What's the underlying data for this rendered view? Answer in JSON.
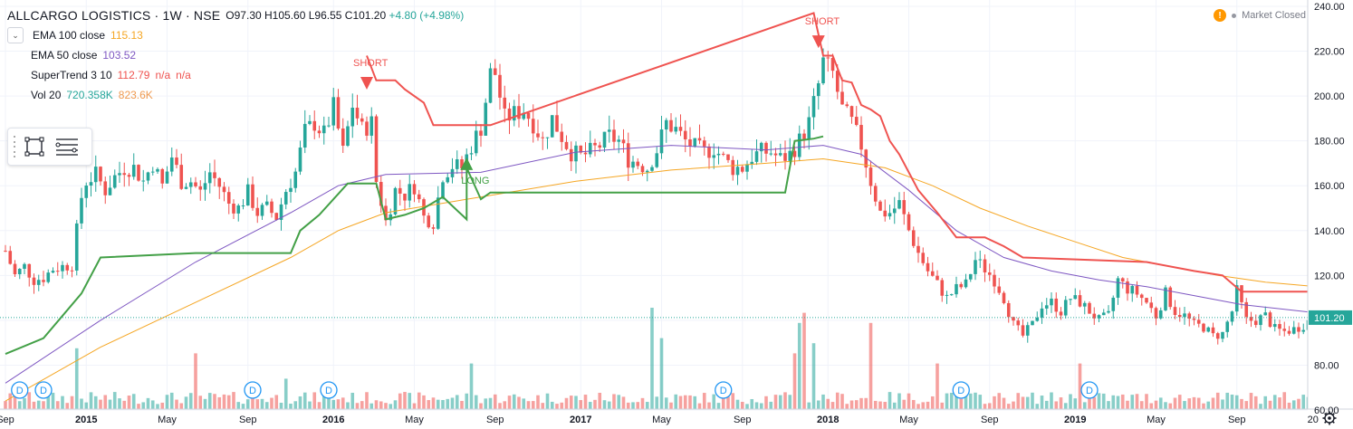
{
  "header": {
    "symbol": "ALLCARGO LOGISTICS · 1W · NSE",
    "open": "O97.30",
    "high": "H105.60",
    "low": "L96.55",
    "close": "C101.20",
    "change": "+4.80 (+4.98%)"
  },
  "indicators": {
    "ema100": {
      "label": "EMA 100 close",
      "value": "115.13",
      "color": "#f5a623"
    },
    "ema50": {
      "label": "EMA 50 close",
      "value": "103.52",
      "color": "#7e57c2"
    },
    "supertrend": {
      "label": "SuperTrend 3 10",
      "value": "112.79",
      "na1": "n/a",
      "na2": "n/a",
      "color": "#ef5350"
    },
    "vol": {
      "label": "Vol 20",
      "value1": "720.358K",
      "value2": "823.6K",
      "color1": "#26a69a",
      "color2": "#ef9a50"
    }
  },
  "market_status": {
    "text": "Market Closed",
    "icon": "warning-icon"
  },
  "toolbar": {
    "icons": [
      "rectangle-tool-icon",
      "lines-tool-icon"
    ]
  },
  "chart_data": {
    "type": "candlestick",
    "price_axis": {
      "ticks": [
        60,
        80,
        100,
        120,
        140,
        160,
        180,
        200,
        220,
        240
      ],
      "range": [
        60,
        240
      ]
    },
    "time_axis": {
      "labels": [
        "Sep",
        "2015",
        "May",
        "Sep",
        "2016",
        "May",
        "Sep",
        "2017",
        "May",
        "Sep",
        "2018",
        "May",
        "Sep",
        "2019",
        "May",
        "Sep",
        "20"
      ],
      "weeks": [
        0,
        17,
        34,
        51,
        69,
        86,
        103,
        121,
        138,
        155,
        173,
        190,
        207,
        225,
        242,
        259,
        275
      ]
    },
    "last_price": {
      "value": 101.2,
      "label": "101.20"
    },
    "close_series": [
      [
        0,
        131
      ],
      [
        2,
        120
      ],
      [
        4,
        124
      ],
      [
        6,
        118
      ],
      [
        8,
        119
      ],
      [
        10,
        123
      ],
      [
        12,
        124
      ],
      [
        14,
        125
      ],
      [
        16,
        155
      ],
      [
        17,
        162
      ],
      [
        19,
        165
      ],
      [
        21,
        158
      ],
      [
        23,
        164
      ],
      [
        25,
        168
      ],
      [
        27,
        168
      ],
      [
        29,
        162
      ],
      [
        31,
        170
      ],
      [
        33,
        160
      ],
      [
        35,
        173
      ],
      [
        37,
        162
      ],
      [
        39,
        162
      ],
      [
        41,
        157
      ],
      [
        43,
        166
      ],
      [
        45,
        160
      ],
      [
        47,
        152
      ],
      [
        49,
        150
      ],
      [
        51,
        157
      ],
      [
        53,
        148
      ],
      [
        55,
        150
      ],
      [
        57,
        146
      ],
      [
        59,
        158
      ],
      [
        61,
        166
      ],
      [
        63,
        184
      ],
      [
        65,
        188
      ],
      [
        67,
        183
      ],
      [
        69,
        195
      ],
      [
        71,
        175
      ],
      [
        73,
        196
      ],
      [
        75,
        185
      ],
      [
        77,
        188
      ],
      [
        78,
        162
      ],
      [
        80,
        144
      ],
      [
        82,
        158
      ],
      [
        84,
        156
      ],
      [
        86,
        160
      ],
      [
        88,
        146
      ],
      [
        90,
        144
      ],
      [
        92,
        165
      ],
      [
        94,
        169
      ],
      [
        96,
        168
      ],
      [
        98,
        178
      ],
      [
        100,
        186
      ],
      [
        102,
        210
      ],
      [
        103,
        210
      ],
      [
        105,
        190
      ],
      [
        107,
        192
      ],
      [
        109,
        194
      ],
      [
        111,
        188
      ],
      [
        113,
        180
      ],
      [
        115,
        190
      ],
      [
        117,
        182
      ],
      [
        119,
        175
      ],
      [
        121,
        173
      ],
      [
        123,
        175
      ],
      [
        125,
        178
      ],
      [
        127,
        182
      ],
      [
        129,
        180
      ],
      [
        131,
        172
      ],
      [
        133,
        170
      ],
      [
        135,
        168
      ],
      [
        137,
        176
      ],
      [
        139,
        188
      ],
      [
        141,
        185
      ],
      [
        143,
        180
      ],
      [
        145,
        177
      ],
      [
        147,
        175
      ],
      [
        149,
        177
      ],
      [
        151,
        172
      ],
      [
        153,
        168
      ],
      [
        155,
        168
      ],
      [
        157,
        173
      ],
      [
        159,
        175
      ],
      [
        161,
        175
      ],
      [
        163,
        172
      ],
      [
        165,
        174
      ],
      [
        167,
        180
      ],
      [
        169,
        188
      ],
      [
        171,
        205
      ],
      [
        172,
        215
      ],
      [
        174,
        210
      ],
      [
        176,
        194
      ],
      [
        178,
        188
      ],
      [
        180,
        178
      ],
      [
        182,
        162
      ],
      [
        184,
        148
      ],
      [
        186,
        148
      ],
      [
        188,
        152
      ],
      [
        190,
        140
      ],
      [
        192,
        130
      ],
      [
        194,
        122
      ],
      [
        196,
        116
      ],
      [
        198,
        110
      ],
      [
        200,
        114
      ],
      [
        202,
        116
      ],
      [
        204,
        127
      ],
      [
        206,
        123
      ],
      [
        208,
        118
      ],
      [
        210,
        110
      ],
      [
        212,
        98
      ],
      [
        214,
        93
      ],
      [
        216,
        98
      ],
      [
        218,
        107
      ],
      [
        220,
        108
      ],
      [
        222,
        104
      ],
      [
        224,
        110
      ],
      [
        226,
        108
      ],
      [
        228,
        104
      ],
      [
        230,
        100
      ],
      [
        232,
        102
      ],
      [
        234,
        118
      ],
      [
        236,
        114
      ],
      [
        238,
        112
      ],
      [
        240,
        108
      ],
      [
        242,
        102
      ],
      [
        244,
        112
      ],
      [
        246,
        104
      ],
      [
        248,
        102
      ],
      [
        250,
        98
      ],
      [
        252,
        97
      ],
      [
        254,
        93
      ],
      [
        256,
        94
      ],
      [
        258,
        104
      ],
      [
        259,
        113
      ],
      [
        261,
        100
      ],
      [
        263,
        100
      ],
      [
        265,
        102
      ],
      [
        267,
        96
      ],
      [
        269,
        95
      ],
      [
        271,
        96
      ],
      [
        273,
        98
      ],
      [
        275,
        101.2
      ]
    ],
    "ema50": [
      [
        0,
        72
      ],
      [
        20,
        100
      ],
      [
        40,
        126
      ],
      [
        60,
        148
      ],
      [
        70,
        160
      ],
      [
        80,
        165
      ],
      [
        100,
        166
      ],
      [
        120,
        175
      ],
      [
        140,
        178
      ],
      [
        160,
        176
      ],
      [
        172,
        178
      ],
      [
        180,
        174
      ],
      [
        190,
        158
      ],
      [
        200,
        140
      ],
      [
        210,
        128
      ],
      [
        220,
        122
      ],
      [
        230,
        118
      ],
      [
        240,
        115
      ],
      [
        250,
        111
      ],
      [
        260,
        107
      ],
      [
        275,
        103.52
      ]
    ],
    "ema100": [
      [
        0,
        64
      ],
      [
        20,
        88
      ],
      [
        40,
        108
      ],
      [
        60,
        128
      ],
      [
        70,
        140
      ],
      [
        80,
        148
      ],
      [
        100,
        155
      ],
      [
        120,
        162
      ],
      [
        140,
        167
      ],
      [
        160,
        170
      ],
      [
        172,
        172
      ],
      [
        185,
        168
      ],
      [
        195,
        160
      ],
      [
        205,
        150
      ],
      [
        215,
        142
      ],
      [
        225,
        135
      ],
      [
        235,
        128
      ],
      [
        245,
        124
      ],
      [
        255,
        120
      ],
      [
        265,
        117
      ],
      [
        275,
        115.13
      ]
    ],
    "supertrend_up": [
      [
        0,
        85
      ],
      [
        8,
        92
      ],
      [
        16,
        112
      ],
      [
        20,
        128
      ],
      [
        40,
        130
      ],
      [
        60,
        130
      ],
      [
        62,
        140
      ],
      [
        66,
        147
      ],
      [
        72,
        161
      ],
      [
        78,
        161
      ],
      [
        80,
        145
      ],
      [
        84,
        147
      ],
      [
        88,
        150
      ],
      [
        92,
        155
      ],
      [
        97,
        145
      ],
      [
        97,
        168
      ],
      [
        100,
        154
      ],
      [
        102,
        157
      ],
      [
        130,
        157
      ],
      [
        160,
        157
      ],
      [
        164,
        157
      ],
      [
        166,
        180
      ],
      [
        170,
        181
      ],
      [
        172,
        182
      ]
    ],
    "supertrend_down": [
      [
        76,
        218
      ],
      [
        78,
        207
      ],
      [
        82,
        207
      ],
      [
        84,
        203
      ],
      [
        88,
        197
      ],
      [
        90,
        187
      ],
      [
        102,
        187
      ],
      [
        170,
        237
      ],
      [
        172,
        218
      ],
      [
        174,
        218
      ],
      [
        176,
        207
      ],
      [
        178,
        206
      ],
      [
        180,
        196
      ],
      [
        182,
        194
      ],
      [
        184,
        191
      ],
      [
        186,
        180
      ],
      [
        188,
        174
      ],
      [
        192,
        158
      ],
      [
        196,
        148
      ],
      [
        200,
        137
      ],
      [
        206,
        137
      ],
      [
        210,
        133
      ],
      [
        214,
        128
      ],
      [
        240,
        126
      ],
      [
        250,
        122
      ],
      [
        256,
        120
      ],
      [
        260,
        112.79
      ],
      [
        275,
        112.79
      ]
    ],
    "signals": [
      {
        "label": "SHORT",
        "week": 76,
        "type": "sell"
      },
      {
        "label": "LONG",
        "week": 97,
        "type": "buy"
      },
      {
        "label": "SHORT",
        "week": 171,
        "type": "sell"
      }
    ],
    "dividend_markers": {
      "label": "D",
      "weeks": [
        3,
        8,
        52,
        68,
        151,
        201,
        228
      ]
    },
    "volume_spikes": [
      [
        15,
        0.6
      ],
      [
        40,
        0.55
      ],
      [
        59,
        0.3
      ],
      [
        98,
        0.45
      ],
      [
        136,
        1.0
      ],
      [
        138,
        0.7
      ],
      [
        166,
        0.55
      ],
      [
        167,
        0.85
      ],
      [
        168,
        0.95
      ],
      [
        170,
        0.65
      ],
      [
        182,
        0.85
      ],
      [
        196,
        0.45
      ],
      [
        226,
        0.45
      ]
    ]
  }
}
